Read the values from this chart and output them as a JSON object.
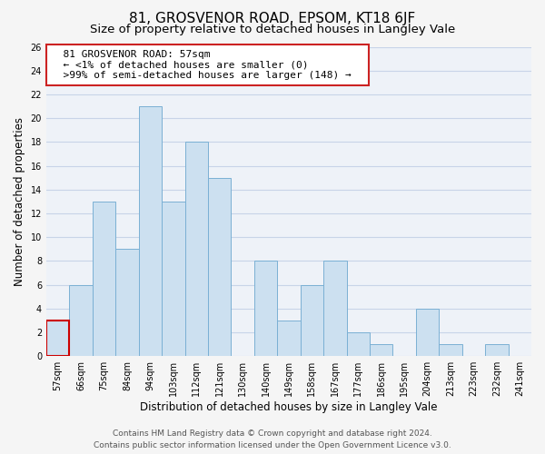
{
  "title": "81, GROSVENOR ROAD, EPSOM, KT18 6JF",
  "subtitle": "Size of property relative to detached houses in Langley Vale",
  "xlabel": "Distribution of detached houses by size in Langley Vale",
  "ylabel": "Number of detached properties",
  "bin_labels": [
    "57sqm",
    "66sqm",
    "75sqm",
    "84sqm",
    "94sqm",
    "103sqm",
    "112sqm",
    "121sqm",
    "130sqm",
    "140sqm",
    "149sqm",
    "158sqm",
    "167sqm",
    "177sqm",
    "186sqm",
    "195sqm",
    "204sqm",
    "213sqm",
    "223sqm",
    "232sqm",
    "241sqm"
  ],
  "bar_values": [
    3,
    6,
    13,
    9,
    21,
    13,
    18,
    15,
    0,
    8,
    3,
    6,
    8,
    2,
    1,
    0,
    4,
    1,
    0,
    1,
    0
  ],
  "bar_color": "#cce0f0",
  "bar_edge_color": "#7ab0d4",
  "highlight_bar_index": 0,
  "highlight_bar_color": "#cce0f0",
  "highlight_bar_edge_color": "#cc0000",
  "annotation_title": "81 GROSVENOR ROAD: 57sqm",
  "annotation_line1": "← <1% of detached houses are smaller (0)",
  "annotation_line2": ">99% of semi-detached houses are larger (148) →",
  "annotation_box_facecolor": "#ffffff",
  "annotation_box_edgecolor": "#cc2222",
  "ylim": [
    0,
    26
  ],
  "yticks": [
    0,
    2,
    4,
    6,
    8,
    10,
    12,
    14,
    16,
    18,
    20,
    22,
    24,
    26
  ],
  "footer_line1": "Contains HM Land Registry data © Crown copyright and database right 2024.",
  "footer_line2": "Contains public sector information licensed under the Open Government Licence v3.0.",
  "bg_color": "#f5f5f5",
  "plot_bg_color": "#eef2f8",
  "grid_color": "#c8d4e8",
  "title_fontsize": 11,
  "subtitle_fontsize": 9.5,
  "axis_label_fontsize": 8.5,
  "tick_fontsize": 7,
  "footer_fontsize": 6.5,
  "annotation_fontsize": 8
}
